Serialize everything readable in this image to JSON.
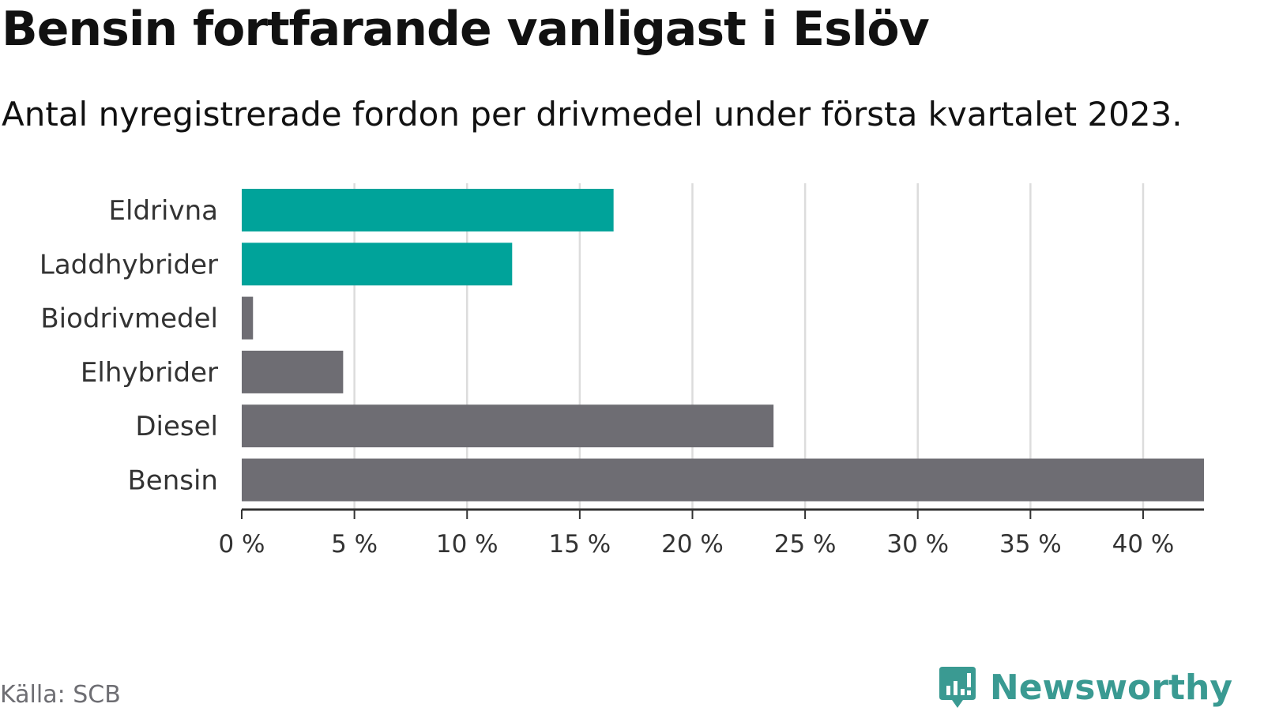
{
  "header": {
    "title": "Bensin fortfarande vanligast i Eslöv",
    "subtitle": "Antal nyregistrerade fordon per drivmedel under första kvartalet 2023."
  },
  "footer": {
    "source": "Källa: SCB",
    "brand": "Newsworthy",
    "brand_icon": "bar-chart-icon",
    "brand_color": "#3a9a92"
  },
  "chart_data": {
    "type": "bar",
    "orientation": "horizontal",
    "categories": [
      "Eldrivna",
      "Laddhybrider",
      "Biodrivmedel",
      "Elhybrider",
      "Diesel",
      "Bensin"
    ],
    "values": [
      16.5,
      12.0,
      0.5,
      4.5,
      23.6,
      42.7
    ],
    "colors": [
      "#00a39a",
      "#00a39a",
      "#6e6d73",
      "#6e6d73",
      "#6e6d73",
      "#6e6d73"
    ],
    "xlim": [
      0,
      42.7
    ],
    "xticks": [
      0,
      5,
      10,
      15,
      20,
      25,
      30,
      35,
      40
    ],
    "xtick_labels": [
      "0 %",
      "5 %",
      "10 %",
      "15 %",
      "20 %",
      "25 %",
      "30 %",
      "35 %",
      "40 %"
    ],
    "xlabel": "",
    "ylabel": "",
    "grid": true,
    "legend": false
  }
}
